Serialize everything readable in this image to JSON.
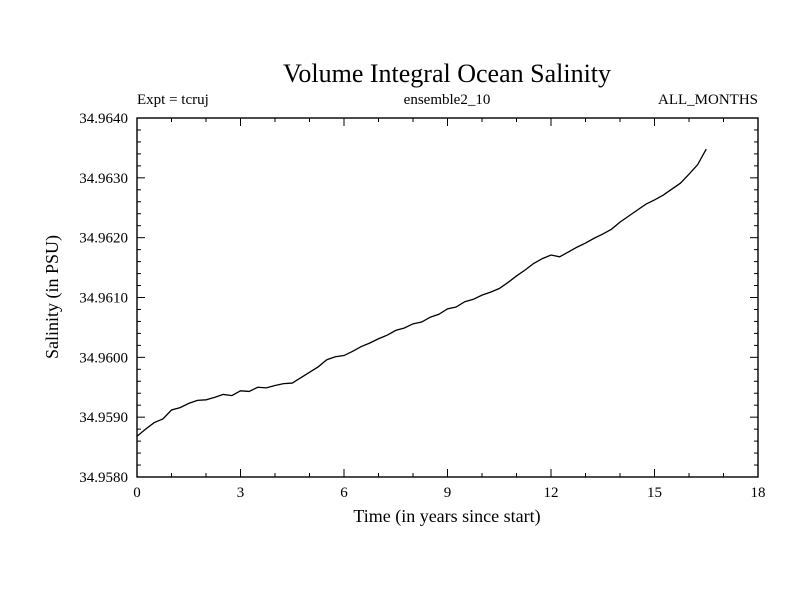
{
  "chart_data": {
    "type": "line",
    "title": "Volume Integral Ocean Salinity",
    "annotations": {
      "left": "Expt = tcruj",
      "center": "ensemble2_10",
      "right": "ALL_MONTHS"
    },
    "xlabel": "Time (in years since start)",
    "ylabel": "Salinity (in PSU)",
    "xlim": [
      0,
      18
    ],
    "ylim": [
      34.958,
      34.964
    ],
    "xticks": [
      0,
      3,
      6,
      9,
      12,
      15,
      18
    ],
    "xtick_labels": [
      "0",
      "3",
      "6",
      "9",
      "12",
      "15",
      "18"
    ],
    "yticks": [
      34.958,
      34.959,
      34.96,
      34.961,
      34.962,
      34.963,
      34.964
    ],
    "ytick_labels": [
      "34.9580",
      "34.9590",
      "34.9600",
      "34.9610",
      "34.9620",
      "34.9630",
      "34.9640"
    ],
    "x_minor_step": 1,
    "y_minor_step": 0.0002,
    "grid": false,
    "line_color": "#000000",
    "background_color": "#ffffff",
    "series": [
      {
        "name": "volume-integral-salinity",
        "x": [
          0.0,
          0.25,
          0.5,
          0.75,
          1.0,
          1.25,
          1.5,
          1.75,
          2.0,
          2.25,
          2.5,
          2.75,
          3.0,
          3.25,
          3.5,
          3.75,
          4.0,
          4.25,
          4.5,
          4.75,
          5.0,
          5.25,
          5.5,
          5.75,
          6.0,
          6.25,
          6.5,
          6.75,
          7.0,
          7.25,
          7.5,
          7.75,
          8.0,
          8.25,
          8.5,
          8.75,
          9.0,
          9.25,
          9.5,
          9.75,
          10.0,
          10.25,
          10.5,
          10.75,
          11.0,
          11.25,
          11.5,
          11.75,
          12.0,
          12.25,
          12.5,
          12.75,
          13.0,
          13.25,
          13.5,
          13.75,
          14.0,
          14.25,
          14.5,
          14.75,
          15.0,
          15.25,
          15.5,
          15.75,
          16.0,
          16.25,
          16.5
        ],
        "y": [
          34.95868,
          34.9588,
          34.95891,
          34.95897,
          34.95912,
          34.95916,
          34.95923,
          34.95928,
          34.95929,
          34.95933,
          34.95938,
          34.95936,
          34.95944,
          34.95943,
          34.9595,
          34.95949,
          34.95953,
          34.95956,
          34.95957,
          34.95966,
          34.95975,
          34.95984,
          34.95996,
          34.96001,
          34.96003,
          34.9601,
          34.96018,
          34.96024,
          34.96031,
          34.96037,
          34.96045,
          34.96049,
          34.96056,
          34.96059,
          34.96067,
          34.96072,
          34.96081,
          34.96084,
          34.96093,
          34.96097,
          34.96104,
          34.96109,
          34.96115,
          34.96125,
          34.96136,
          34.96146,
          34.96157,
          34.96165,
          34.96171,
          34.96168,
          34.96176,
          34.96184,
          34.96191,
          34.96199,
          34.96206,
          34.96214,
          34.96226,
          34.96236,
          34.96246,
          34.96256,
          34.96263,
          34.96271,
          34.96281,
          34.96291,
          34.96306,
          34.96322,
          34.96348
        ]
      }
    ]
  }
}
